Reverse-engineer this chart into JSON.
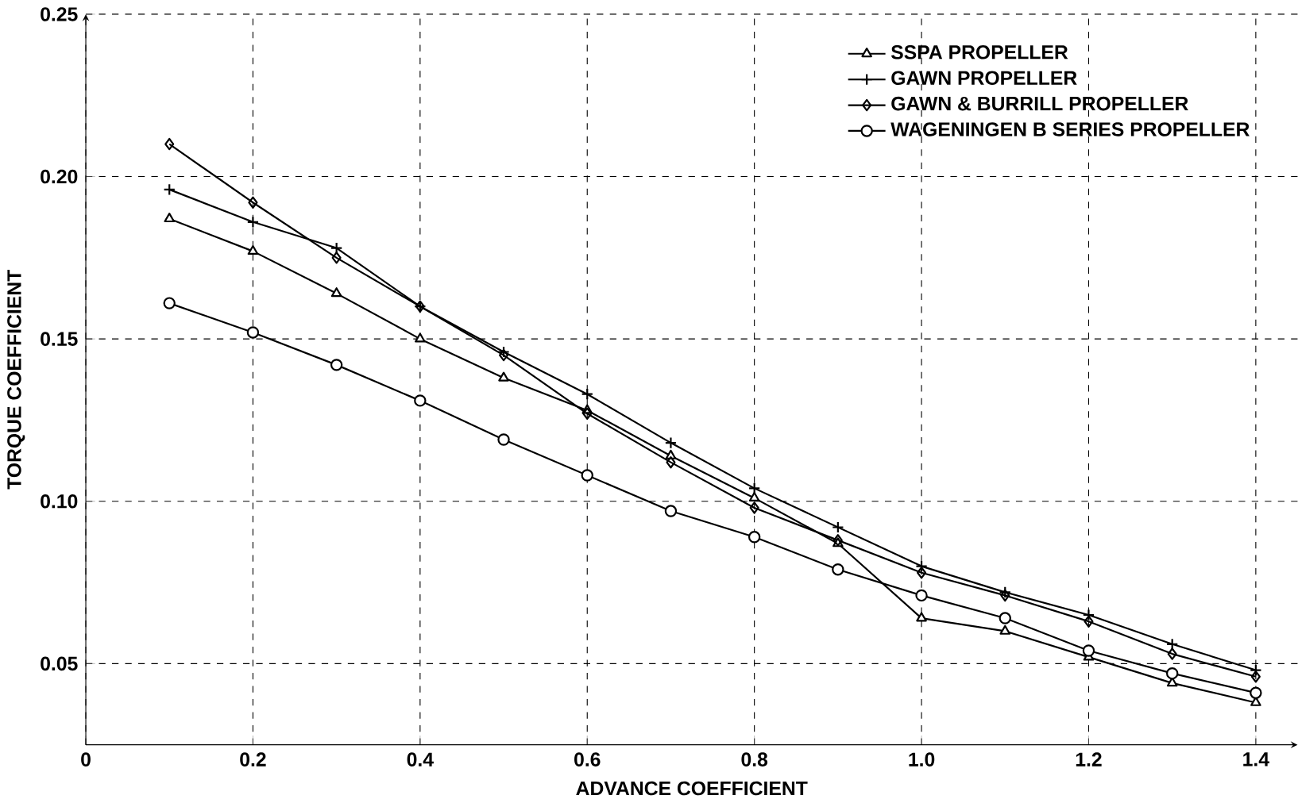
{
  "chart_data": {
    "type": "line",
    "xlabel": "ADVANCE COEFFICIENT",
    "ylabel": "TORQUE COEFFICIENT",
    "x": [
      0.1,
      0.2,
      0.3,
      0.4,
      0.5,
      0.6,
      0.7,
      0.8,
      0.9,
      1.0,
      1.1,
      1.2,
      1.3,
      1.4
    ],
    "series": [
      {
        "name": "SSPA PROPELLER",
        "color": "#000000",
        "marker": "triangle",
        "values": [
          0.187,
          0.177,
          0.164,
          0.15,
          0.138,
          0.128,
          0.114,
          0.101,
          0.087,
          0.064,
          0.06,
          0.052,
          0.044,
          0.038
        ]
      },
      {
        "name": "GAWN PROPELLER",
        "color": "#000000",
        "marker": "cross",
        "values": [
          0.196,
          0.186,
          0.178,
          0.16,
          0.146,
          0.133,
          0.118,
          0.104,
          0.092,
          0.08,
          0.072,
          0.065,
          0.056,
          0.048
        ]
      },
      {
        "name": "GAWN & BURRILL PROPELLER",
        "color": "#000000",
        "marker": "diamond",
        "values": [
          0.21,
          0.192,
          0.175,
          0.16,
          0.145,
          0.127,
          0.112,
          0.098,
          0.088,
          0.078,
          0.071,
          0.063,
          0.053,
          0.046
        ]
      },
      {
        "name": "WAGENINGEN B SERIES PROPELLER",
        "color": "#000000",
        "marker": "circle",
        "values": [
          0.161,
          0.152,
          0.142,
          0.131,
          0.119,
          0.108,
          0.097,
          0.089,
          0.079,
          0.071,
          0.064,
          0.054,
          0.047,
          0.041
        ]
      }
    ],
    "xlim": [
      0,
      1.45
    ],
    "ylim": [
      0.025,
      0.25
    ],
    "xticks": [
      0,
      0.2,
      0.4,
      0.6,
      0.8,
      {
        "value": 1.0,
        "label": "1.0"
      },
      1.2,
      1.4
    ],
    "yticks": [
      0.05,
      {
        "value": 0.1,
        "label": "0.10"
      },
      0.15,
      {
        "value": 0.2,
        "label": "0.20"
      },
      0.25
    ],
    "grid": true,
    "legend": "top right",
    "line_style": "solid"
  }
}
